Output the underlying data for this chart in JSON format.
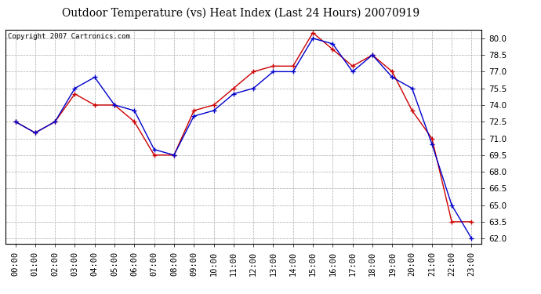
{
  "title": "Outdoor Temperature (vs) Heat Index (Last 24 Hours) 20070919",
  "copyright": "Copyright 2007 Cartronics.com",
  "x_labels": [
    "00:00",
    "01:00",
    "02:00",
    "03:00",
    "04:00",
    "05:00",
    "06:00",
    "07:00",
    "08:00",
    "09:00",
    "10:00",
    "11:00",
    "12:00",
    "13:00",
    "14:00",
    "15:00",
    "16:00",
    "17:00",
    "18:00",
    "19:00",
    "20:00",
    "21:00",
    "22:00",
    "23:00"
  ],
  "temp_data": [
    72.5,
    71.5,
    72.5,
    75.0,
    74.0,
    74.0,
    72.5,
    69.5,
    69.5,
    73.5,
    74.0,
    75.5,
    77.0,
    77.5,
    77.5,
    80.5,
    79.0,
    77.5,
    78.5,
    77.0,
    73.5,
    71.0,
    63.5,
    63.5
  ],
  "heat_data": [
    72.5,
    71.5,
    72.5,
    75.5,
    76.5,
    74.0,
    73.5,
    70.0,
    69.5,
    73.0,
    73.5,
    75.0,
    75.5,
    77.0,
    77.0,
    80.0,
    79.5,
    77.0,
    78.5,
    76.5,
    75.5,
    70.5,
    65.0,
    62.0
  ],
  "temp_color": "#cc0000",
  "heat_color": "#0000cc",
  "ylim_min": 61.5,
  "ylim_max": 80.8,
  "yticks": [
    62.0,
    63.5,
    65.0,
    66.5,
    68.0,
    69.5,
    71.0,
    72.5,
    74.0,
    75.5,
    77.0,
    78.5,
    80.0
  ],
  "background_color": "#ffffff",
  "plot_bg_color": "#ffffff",
  "grid_color": "#aaaaaa",
  "title_fontsize": 10,
  "copyright_fontsize": 6.5,
  "tick_fontsize": 7.5
}
